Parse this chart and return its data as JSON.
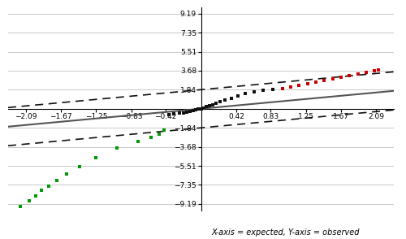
{
  "xlim": [
    -2.3,
    2.3
  ],
  "ylim": [
    -9.8,
    9.8
  ],
  "xticks": [
    -2.09,
    -1.67,
    -1.25,
    -0.83,
    -0.42,
    0.42,
    0.83,
    1.25,
    1.67,
    2.09
  ],
  "yticks": [
    -9.19,
    -7.35,
    -5.51,
    -3.68,
    -1.84,
    1.84,
    3.68,
    5.51,
    7.35,
    9.19
  ],
  "xlabel": "X-axis = expected, Y-axis = observed",
  "background_color": "#ffffff",
  "grid_color": "#c8c8c8",
  "solid_line_color": "#555555",
  "dashed_line_color": "#111111",
  "black_dot_color": "#111111",
  "red_dot_color": "#cc0000",
  "green_dot_color": "#009900",
  "solid_line_slope": 0.75,
  "dashed_upper_intercept": 1.84,
  "dashed_lower_intercept": -1.84,
  "dashed_slope": 0.75,
  "black_dots_x": [
    -0.38,
    -0.32,
    -0.26,
    -0.21,
    -0.17,
    -0.13,
    -0.09,
    -0.06,
    -0.03,
    0.0,
    0.03,
    0.06,
    0.1,
    0.14,
    0.18,
    0.23,
    0.29,
    0.36,
    0.44,
    0.53,
    0.63,
    0.74,
    0.86
  ],
  "black_dots_y": [
    -0.55,
    -0.5,
    -0.44,
    -0.38,
    -0.3,
    -0.24,
    -0.18,
    -0.11,
    -0.05,
    0.02,
    0.09,
    0.18,
    0.28,
    0.38,
    0.51,
    0.66,
    0.84,
    1.04,
    1.26,
    1.48,
    1.64,
    1.75,
    1.83
  ],
  "red_dots_x": [
    0.97,
    1.07,
    1.17,
    1.27,
    1.37,
    1.47,
    1.57,
    1.67,
    1.77,
    1.87,
    1.97,
    2.07,
    2.12
  ],
  "red_dots_y": [
    1.92,
    2.08,
    2.22,
    2.38,
    2.55,
    2.7,
    2.86,
    3.02,
    3.18,
    3.38,
    3.52,
    3.65,
    3.78
  ],
  "green_dots_x": [
    -2.15,
    -2.05,
    -1.97,
    -1.9,
    -1.82,
    -1.72,
    -1.6,
    -1.45,
    -1.25,
    -1.0,
    -0.75,
    -0.6,
    -0.5,
    -0.44
  ],
  "green_dots_y": [
    -9.45,
    -8.9,
    -8.4,
    -7.9,
    -7.45,
    -6.9,
    -6.3,
    -5.55,
    -4.75,
    -3.8,
    -3.15,
    -2.75,
    -2.42,
    -2.08
  ]
}
